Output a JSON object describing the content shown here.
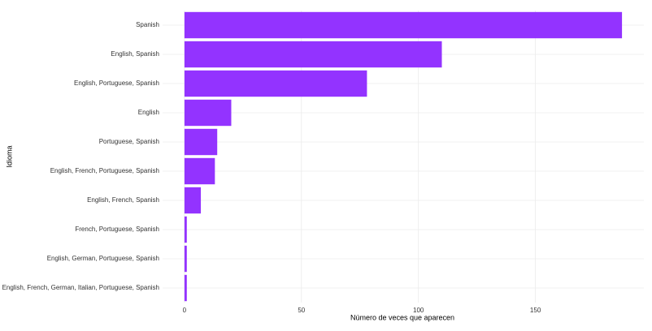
{
  "chart_data": {
    "type": "barh",
    "xlabel": "Número de veces que aparecen",
    "ylabel": "Idioma",
    "categories": [
      "Spanish",
      "English, Spanish",
      "English, Portuguese, Spanish",
      "English",
      "Portuguese, Spanish",
      "English, French, Portuguese, Spanish",
      "English, French, Spanish",
      "French, Portuguese, Spanish",
      "English, German, Portuguese, Spanish",
      "English, French, German, Italian, Portuguese, Spanish"
    ],
    "values": [
      187,
      110,
      78,
      20,
      14,
      13,
      7,
      1,
      1,
      1
    ],
    "color": "#9333ff",
    "xlim": [
      -9.35,
      196.35
    ],
    "xticks": [
      0,
      50,
      100,
      150
    ],
    "grid": true
  }
}
